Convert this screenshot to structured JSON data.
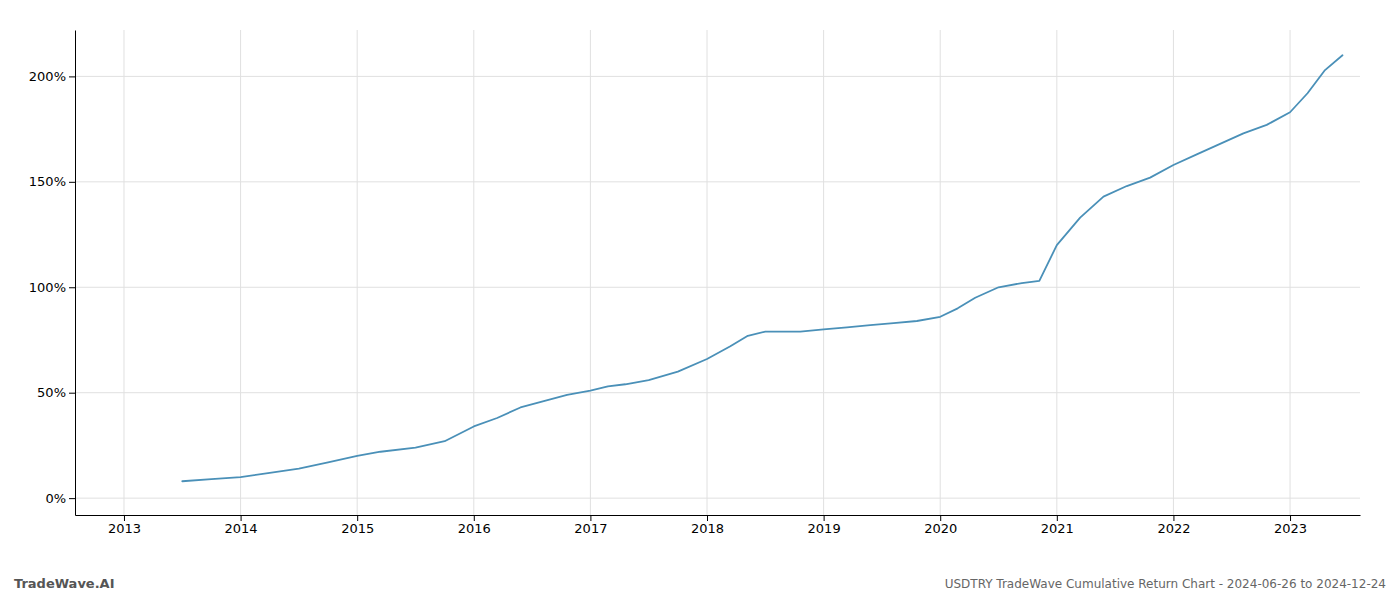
{
  "chart_data": {
    "type": "line",
    "title": "USDTRY TradeWave Cumulative Return Chart - 2024-06-26 to 2024-12-24",
    "annotations": [
      "TradeWave.AI"
    ],
    "x": [
      2013.5,
      2013.75,
      2014.0,
      2014.25,
      2014.5,
      2014.75,
      2015.0,
      2015.2,
      2015.5,
      2015.75,
      2016.0,
      2016.2,
      2016.4,
      2016.6,
      2016.8,
      2017.0,
      2017.15,
      2017.3,
      2017.5,
      2017.75,
      2018.0,
      2018.2,
      2018.35,
      2018.5,
      2018.65,
      2018.8,
      2019.0,
      2019.2,
      2019.4,
      2019.6,
      2019.8,
      2020.0,
      2020.15,
      2020.3,
      2020.5,
      2020.7,
      2020.85,
      2021.0,
      2021.2,
      2021.4,
      2021.6,
      2021.8,
      2022.0,
      2022.2,
      2022.4,
      2022.6,
      2022.8,
      2023.0,
      2023.15,
      2023.3,
      2023.45
    ],
    "values": [
      8,
      9,
      10,
      12,
      14,
      17,
      20,
      22,
      24,
      27,
      34,
      38,
      43,
      46,
      49,
      51,
      53,
      54,
      56,
      60,
      66,
      72,
      77,
      79,
      79,
      79,
      80,
      81,
      82,
      83,
      84,
      86,
      90,
      95,
      100,
      102,
      103,
      120,
      133,
      143,
      148,
      152,
      158,
      163,
      168,
      173,
      177,
      183,
      192,
      203,
      210
    ],
    "color": "#4a90b8",
    "xlim": [
      2012.58,
      2023.6
    ],
    "xticks": [
      2013,
      2014,
      2015,
      2016,
      2017,
      2018,
      2019,
      2020,
      2021,
      2022,
      2023
    ],
    "ylim": [
      -8,
      222
    ],
    "yticks": [
      {
        "value": 0,
        "label": "0%"
      },
      {
        "value": 50,
        "label": "50%"
      },
      {
        "value": 100,
        "label": "100%"
      },
      {
        "value": 150,
        "label": "150%"
      },
      {
        "value": 200,
        "label": "200%"
      }
    ],
    "grid": true
  }
}
